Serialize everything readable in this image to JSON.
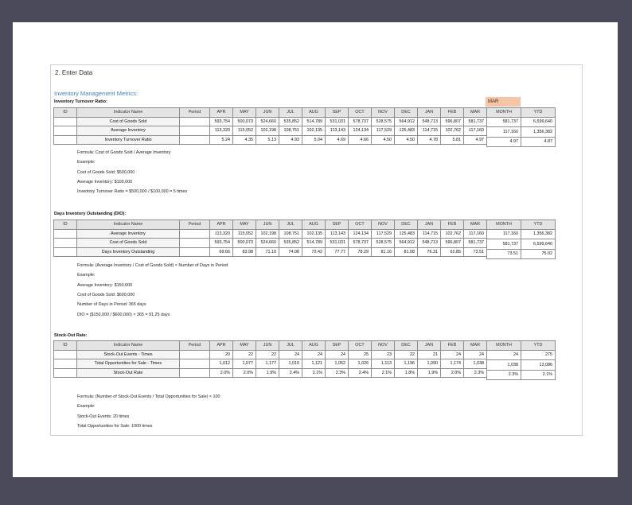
{
  "title": "2. Enter Data",
  "subtitle": "Inventory Management Metrics:",
  "selected_month": "MAR",
  "headers": {
    "id": "ID",
    "indicator": "Indicator Name",
    "period": "Period",
    "months": [
      "APR",
      "MAY",
      "JUN",
      "JUL",
      "AUG",
      "SEP",
      "OCT",
      "NOV",
      "DEC",
      "JAN",
      "FEB",
      "MAR"
    ],
    "month": "MONTH",
    "ytd": "YTD"
  },
  "sections": [
    {
      "title": "Inventory Turnover Ratio:",
      "rows": [
        {
          "name": "Cost of Goods Sold",
          "values": [
            "593,754",
            "500,073",
            "524,660",
            "535,852",
            "514,789",
            "531,031",
            "578,737",
            "528,575",
            "564,912",
            "548,713",
            "596,807",
            "581,737"
          ],
          "month": "581,737",
          "ytd": "6,599,640"
        },
        {
          "name": "Average Inventory",
          "values": [
            "113,320",
            "115,052",
            "102,198",
            "108,751",
            "102,135",
            "113,143",
            "124,134",
            "117,529",
            "125,483",
            "114,715",
            "102,762",
            "117,160"
          ],
          "month": "117,160",
          "ytd": "1,356,382"
        },
        {
          "name": "Inventory Turnover Ratio",
          "values": [
            "5.24",
            "4.35",
            "5.13",
            "4.93",
            "5.04",
            "4.69",
            "4.66",
            "4.50",
            "4.50",
            "4.78",
            "5.81",
            "4.97"
          ],
          "month": "4.97",
          "ytd": "4.87"
        }
      ],
      "notes": [
        "Formula: Cost of Goods Sold / Average Inventory",
        "Example:",
        "Cost of Goods Sold: $500,000",
        "Average Inventory: $100,000",
        "Inventory Turnover Ratio = $500,000 / $100,000 = 5 times"
      ]
    },
    {
      "title": "Days Inventory Outstanding (DIO):",
      "rows": [
        {
          "name": "Average Inventory",
          "values": [
            "113,320",
            "115,052",
            "102,198",
            "108,751",
            "102,135",
            "113,143",
            "124,134",
            "117,529",
            "125,483",
            "114,715",
            "102,762",
            "117,160"
          ],
          "month": "117,160",
          "ytd": "1,356,382"
        },
        {
          "name": "Cost of Goods Sold",
          "values": [
            "593,754",
            "500,073",
            "524,660",
            "535,852",
            "514,789",
            "531,031",
            "578,737",
            "528,575",
            "564,912",
            "548,713",
            "596,807",
            "581,737"
          ],
          "month": "581,737",
          "ytd": "6,599,640"
        },
        {
          "name": "Days Inventory Outstanding",
          "values": [
            "69.66",
            "83.98",
            "71.10",
            "74.08",
            "72.42",
            "77.77",
            "78.29",
            "81.16",
            "81.08",
            "76.31",
            "62.85",
            "73.51"
          ],
          "month": "73.51",
          "ytd": "75.02"
        }
      ],
      "notes": [
        "Formula: (Average Inventory / Cost of Goods Sold) × Number of Days in Period",
        "Example:",
        "Average Inventory: $150,000",
        "Cost of Goods Sold: $600,000",
        "Number of Days in Period: 365 days",
        "DIO = ($150,000 / $600,000) × 365 = 91.25 days"
      ]
    },
    {
      "title": "Stock-Out Rate:",
      "rows": [
        {
          "name": "Stock-Out Events - Times",
          "values": [
            "20",
            "22",
            "22",
            "24",
            "24",
            "24",
            "25",
            "23",
            "22",
            "21",
            "24",
            "24"
          ],
          "month": "24",
          "ytd": "275"
        },
        {
          "name": "Total Opportunities for Sale - Times",
          "values": [
            "1,012",
            "1,077",
            "1,177",
            "1,010",
            "1,121",
            "1,052",
            "1,026",
            "1,113",
            "1,196",
            "1,090",
            "1,174",
            "1,038"
          ],
          "month": "1,038",
          "ytd": "13,086"
        },
        {
          "name": "Stock-Out Rate",
          "values": [
            "2.0%",
            "2.0%",
            "1.9%",
            "2.4%",
            "2.1%",
            "2.3%",
            "2.4%",
            "2.1%",
            "1.8%",
            "1.9%",
            "2.0%",
            "2.3%"
          ],
          "month": "2.3%",
          "ytd": "2.1%"
        }
      ],
      "notes": [
        "Formula: (Number of Stock-Out Events / Total Opportunities for Sale) × 100",
        "Example:",
        "Stock-Out Events: 20 times",
        "Total Opportunities for Sale: 1000 times"
      ]
    }
  ]
}
